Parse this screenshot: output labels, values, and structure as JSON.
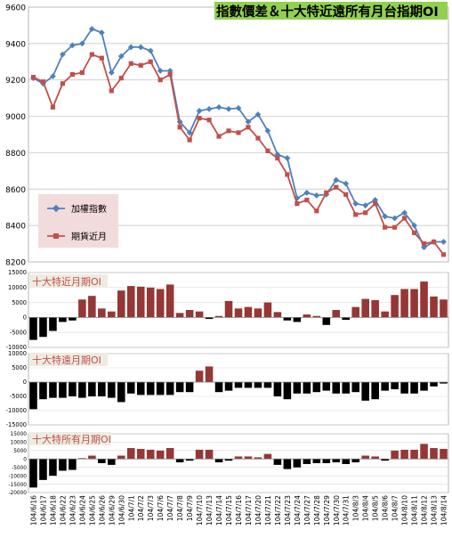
{
  "dates": [
    "104/6/16",
    "104/6/17",
    "104/6/18",
    "104/6/22",
    "104/6/23",
    "104/6/24",
    "104/6/25",
    "104/6/26",
    "104/6/29",
    "104/6/30",
    "104/7/1",
    "104/7/2",
    "104/7/3",
    "104/7/6",
    "104/7/7",
    "104/7/8",
    "104/7/9",
    "104/7/10",
    "104/7/13",
    "104/7/14",
    "104/7/15",
    "104/7/16",
    "104/7/17",
    "104/7/20",
    "104/7/21",
    "104/7/22",
    "104/7/23",
    "104/7/24",
    "104/7/27",
    "104/7/28",
    "104/7/29",
    "104/7/30",
    "104/7/31",
    "104/8/3",
    "104/8/4",
    "104/8/5",
    "104/8/6",
    "104/8/7",
    "104/8/10",
    "104/8/11",
    "104/8/12",
    "104/8/13",
    "104/8/14"
  ],
  "colors": {
    "index": "#4f81bd",
    "futures": "#c0504d",
    "bar_pos": "#953735",
    "bar_neg": "#000000",
    "title_bg": "#92d050",
    "legend_bg": "#f2dcdb",
    "panel_title_bg": "#eeece1",
    "panel_title_text": "#c0504d"
  },
  "chart_data": [
    {
      "type": "line",
      "title": "指數價差＆十大特近遠所有月台指期OI",
      "ylim": [
        8200,
        9600
      ],
      "yticks": [
        8200,
        8400,
        8600,
        8800,
        9000,
        9200,
        9400,
        9600
      ],
      "grid": true,
      "legend": "center-left",
      "series": [
        {
          "name": "加權指數",
          "values": [
            9210,
            9180,
            9220,
            9340,
            9390,
            9400,
            9480,
            9460,
            9240,
            9330,
            9380,
            9380,
            9360,
            9250,
            9250,
            8970,
            8910,
            9030,
            9040,
            9050,
            9040,
            9045,
            8970,
            9010,
            8920,
            8790,
            8770,
            8550,
            8580,
            8565,
            8570,
            8650,
            8630,
            8520,
            8510,
            8540,
            8450,
            8440,
            8470,
            8400,
            8280,
            8310,
            8310
          ]
        },
        {
          "name": "期貨近月",
          "values": [
            9215,
            9190,
            9050,
            9180,
            9230,
            9240,
            9340,
            9320,
            9140,
            9210,
            9290,
            9280,
            9300,
            9200,
            9230,
            8940,
            8870,
            8990,
            8980,
            8890,
            8920,
            8910,
            8940,
            8880,
            8810,
            8770,
            8680,
            8520,
            8540,
            8480,
            8580,
            8610,
            8570,
            8460,
            8470,
            8520,
            8390,
            8390,
            8440,
            8360,
            8300,
            8310,
            8240
          ]
        }
      ]
    },
    {
      "type": "bar",
      "title": "十大特近月期OI",
      "ylim": [
        -10000,
        15000
      ],
      "yticks": [
        -10000,
        -5000,
        0,
        5000,
        10000,
        15000
      ],
      "values": [
        -7500,
        -6500,
        -4500,
        -1500,
        -1000,
        6000,
        7200,
        3000,
        2000,
        9000,
        10500,
        10300,
        10000,
        9500,
        11000,
        1500,
        2500,
        2000,
        -500,
        500,
        5500,
        3000,
        3500,
        3000,
        5000,
        1800,
        -1000,
        -1500,
        1000,
        500,
        -2500,
        2500,
        -800,
        3500,
        6200,
        5800,
        2000,
        7500,
        9500,
        9500,
        12000,
        7000,
        6000
      ]
    },
    {
      "type": "bar",
      "title": "十大特遠月期OI",
      "ylim": [
        -15000,
        10000
      ],
      "yticks": [
        -15000,
        -10000,
        -5000,
        0,
        5000,
        10000
      ],
      "values": [
        -9500,
        -6000,
        -5500,
        -5500,
        -5000,
        -5500,
        -5000,
        -5000,
        -5500,
        -7000,
        -4000,
        -4500,
        -4500,
        -4500,
        -4500,
        -3500,
        -3500,
        4000,
        5500,
        -3500,
        -3000,
        -2000,
        -2000,
        -2000,
        -2000,
        -5000,
        -6000,
        -4000,
        -4000,
        -3500,
        -3000,
        -4000,
        -4000,
        -3500,
        -6500,
        -6000,
        -3000,
        -2500,
        -4000,
        -4000,
        -3000,
        -1500,
        -500
      ]
    },
    {
      "type": "bar",
      "title": "十大特所有月期OI",
      "ylim": [
        -20000,
        15000
      ],
      "yticks": [
        -20000,
        -15000,
        -10000,
        -5000,
        0,
        5000,
        10000,
        15000
      ],
      "values": [
        -17000,
        -12500,
        -10000,
        -7000,
        -6500,
        500,
        2000,
        -2500,
        -3500,
        2000,
        6500,
        6000,
        5500,
        5000,
        6500,
        -2000,
        -1000,
        5500,
        5500,
        -2000,
        -1000,
        1500,
        1500,
        1000,
        3000,
        -3500,
        -6000,
        -5000,
        -3000,
        -2500,
        -2500,
        -2000,
        -3000,
        -2000,
        2000,
        1500,
        -1000,
        5000,
        5500,
        5500,
        9000,
        6500,
        6000
      ]
    }
  ]
}
